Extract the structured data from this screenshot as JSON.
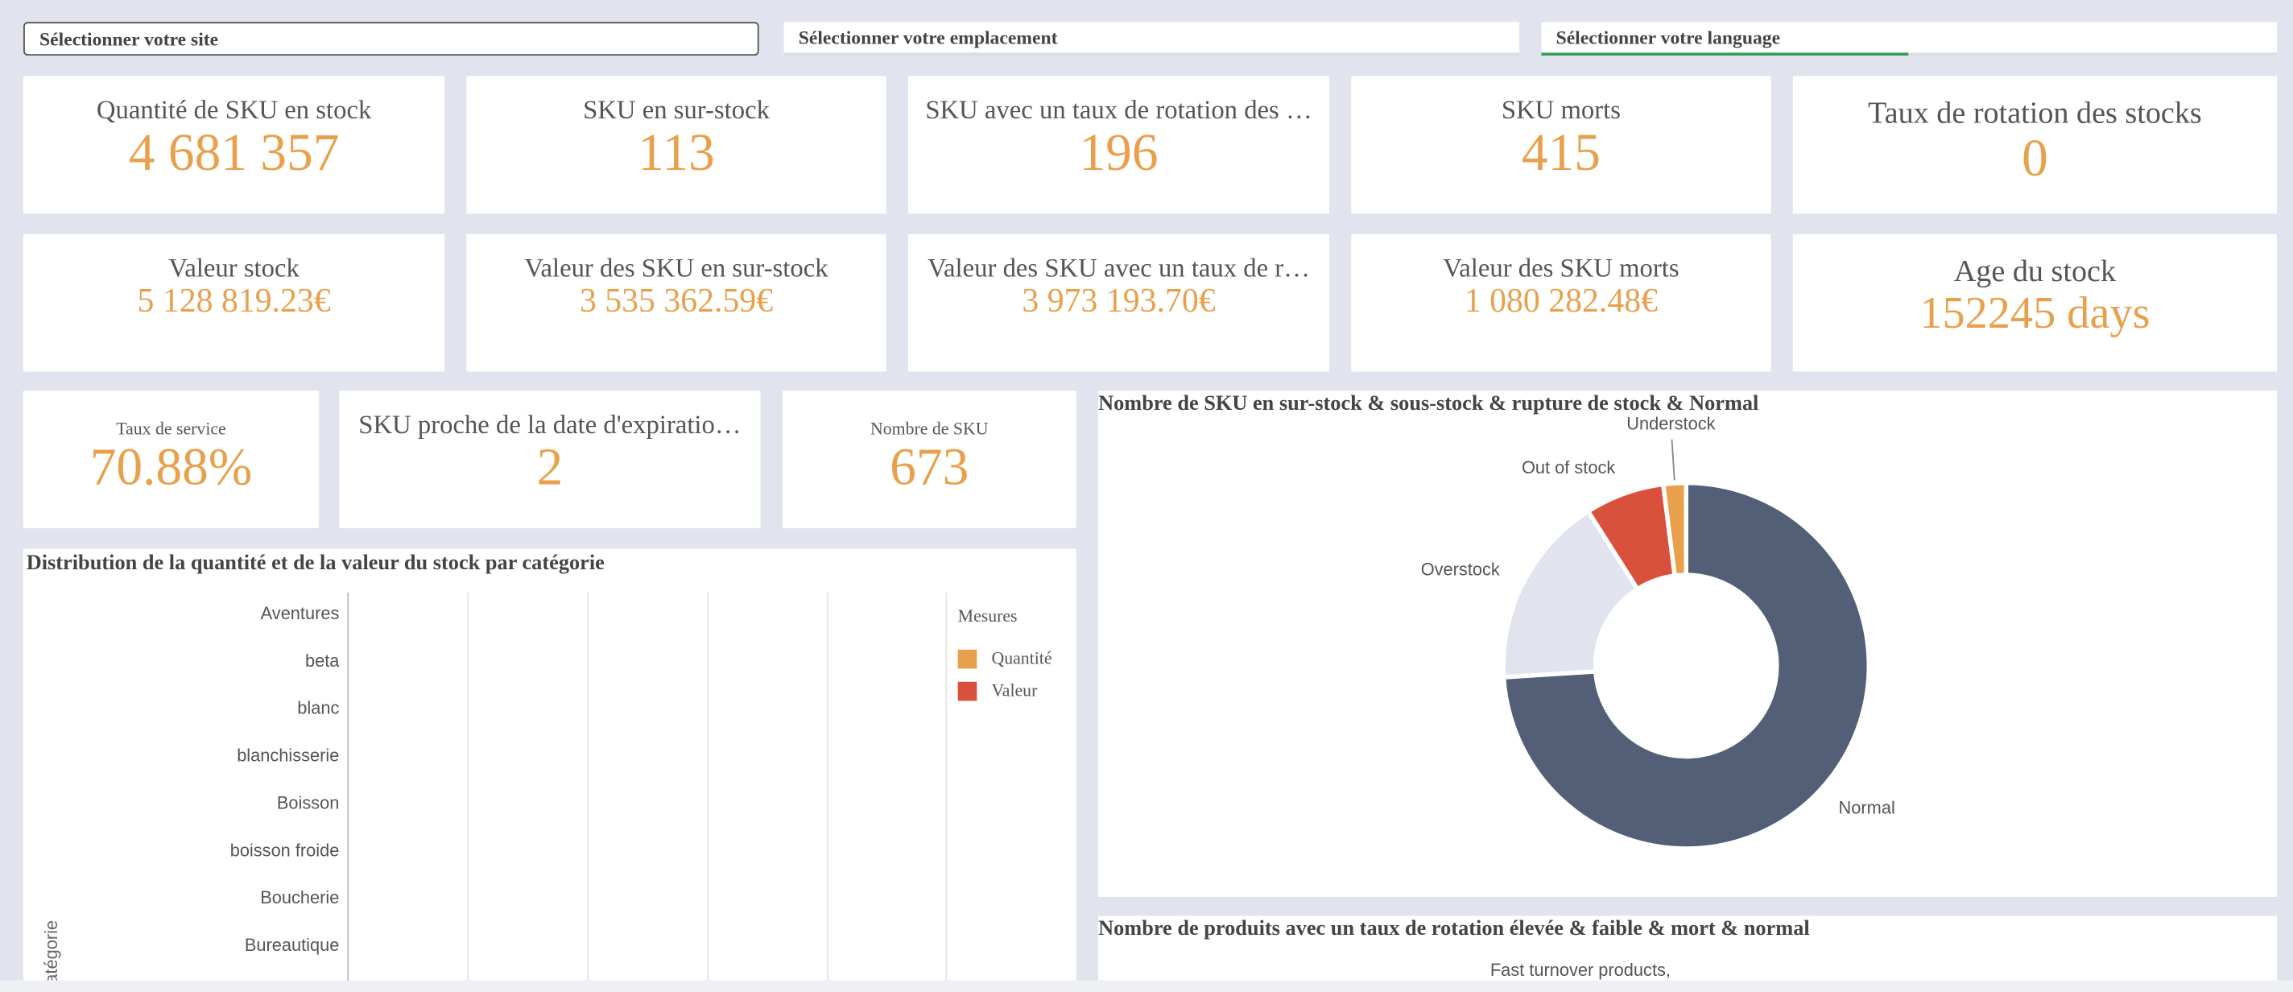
{
  "filters": [
    "Sélectionner votre site",
    "Sélectionner votre emplacement",
    "Sélectionner votre language"
  ],
  "kpis": [
    {
      "label": "Quantité de SKU en stock",
      "value": "4 681 357"
    },
    {
      "label": "SKU en sur-stock",
      "value": "113"
    },
    {
      "label": "SKU avec un taux de rotation des …",
      "value": "196"
    },
    {
      "label": "SKU morts",
      "value": "415"
    },
    {
      "label": "Taux de rotation des stocks",
      "value": "0"
    },
    {
      "label": "Valeur stock",
      "value": "5 128 819.23€"
    },
    {
      "label": "Valeur des SKU en sur-stock",
      "value": "3 535 362.59€"
    },
    {
      "label": "Valeur des SKU avec un taux de r…",
      "value": "3 973 193.70€"
    },
    {
      "label": "Valeur des SKU morts",
      "value": "1 080 282.48€"
    },
    {
      "label": "Age du stock",
      "value": "152245 days"
    },
    {
      "label": "Taux de service",
      "value": "70.88%"
    },
    {
      "label": "SKU proche de la date d'expiratio…",
      "value": "2"
    },
    {
      "label": "Nombre de SKU",
      "value": "673"
    }
  ],
  "chart_data": [
    {
      "type": "pie",
      "title": "Nombre de SKU en sur-stock & sous-stock & rupture de stock & Normal",
      "donut": true,
      "categories": [
        "Normal",
        "Overstock",
        "Out of stock",
        "Understock"
      ],
      "values": [
        74,
        17,
        7,
        2
      ],
      "colors": [
        "#535f77",
        "#e1e4ee",
        "#d9503c",
        "#e8a04c"
      ]
    },
    {
      "type": "bar",
      "orientation": "horizontal",
      "title": "Distribution de la quantité et de la valeur du stock par catégorie",
      "categories": [
        "Aventures",
        "beta",
        "blanc",
        "blanchisserie",
        "Boisson",
        "boisson froide",
        "Boucherie",
        "Bureautique"
      ],
      "ylabel": "Catégorie",
      "legend_title": "Mesures",
      "series": [
        {
          "name": "Quantité",
          "color": "#e8a04c"
        },
        {
          "name": "Valeur",
          "color": "#d9503c"
        }
      ]
    },
    {
      "type": "pie",
      "title": "Nombre de produits avec un taux de rotation élevée & faible & mort & normal",
      "labels": [
        "Fast turnover products,"
      ]
    }
  ]
}
